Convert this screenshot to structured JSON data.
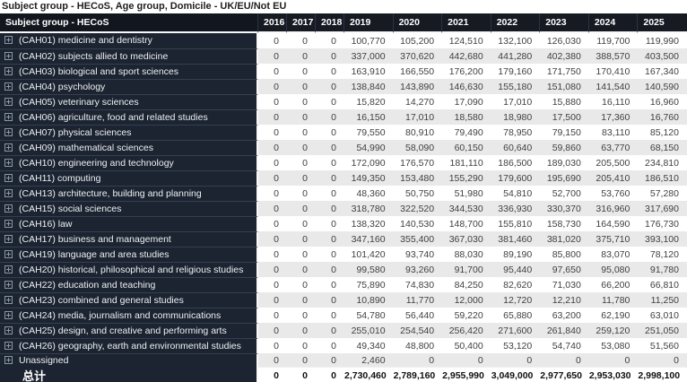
{
  "title": "Subject group - HECoS, Age group, Domicile - UK/EU/Not EU",
  "theme": {
    "header_bg": "#12161e",
    "row_label_bg": "#1c2431",
    "alt_row_bg": "#e9e9e9",
    "text_on_dark": "#ffffff"
  },
  "table": {
    "label_header": "Subject group - HECoS",
    "year_headers": [
      "2016",
      "2017",
      "2018",
      "2019",
      "2020",
      "2021",
      "2022",
      "2023",
      "2024",
      "2025"
    ],
    "rows": [
      {
        "label": "(CAH01) medicine and dentistry",
        "values": [
          "0",
          "0",
          "0",
          "100,770",
          "105,200",
          "124,510",
          "132,100",
          "126,030",
          "119,700",
          "119,990"
        ]
      },
      {
        "label": "(CAH02) subjects allied to medicine",
        "values": [
          "0",
          "0",
          "0",
          "337,000",
          "370,620",
          "442,680",
          "441,280",
          "402,380",
          "388,570",
          "403,500"
        ]
      },
      {
        "label": "(CAH03) biological and sport sciences",
        "values": [
          "0",
          "0",
          "0",
          "163,910",
          "166,550",
          "176,200",
          "179,160",
          "171,750",
          "170,410",
          "167,340"
        ]
      },
      {
        "label": "(CAH04) psychology",
        "values": [
          "0",
          "0",
          "0",
          "138,840",
          "143,890",
          "146,630",
          "155,180",
          "151,080",
          "141,540",
          "140,590"
        ]
      },
      {
        "label": "(CAH05) veterinary sciences",
        "values": [
          "0",
          "0",
          "0",
          "15,820",
          "14,270",
          "17,090",
          "17,010",
          "15,880",
          "16,110",
          "16,960"
        ]
      },
      {
        "label": "(CAH06) agriculture, food and related studies",
        "values": [
          "0",
          "0",
          "0",
          "16,150",
          "17,010",
          "18,580",
          "18,980",
          "17,500",
          "17,360",
          "16,760"
        ]
      },
      {
        "label": "(CAH07) physical sciences",
        "values": [
          "0",
          "0",
          "0",
          "79,550",
          "80,910",
          "79,490",
          "78,950",
          "79,150",
          "83,110",
          "85,120"
        ]
      },
      {
        "label": "(CAH09) mathematical sciences",
        "values": [
          "0",
          "0",
          "0",
          "54,990",
          "58,090",
          "60,150",
          "60,640",
          "59,860",
          "63,770",
          "68,150"
        ]
      },
      {
        "label": "(CAH10) engineering and technology",
        "values": [
          "0",
          "0",
          "0",
          "172,090",
          "176,570",
          "181,110",
          "186,500",
          "189,030",
          "205,500",
          "234,810"
        ]
      },
      {
        "label": "(CAH11) computing",
        "values": [
          "0",
          "0",
          "0",
          "149,350",
          "153,480",
          "155,290",
          "179,600",
          "195,690",
          "205,410",
          "186,510"
        ]
      },
      {
        "label": "(CAH13) architecture, building and planning",
        "values": [
          "0",
          "0",
          "0",
          "48,360",
          "50,750",
          "51,980",
          "54,810",
          "52,700",
          "53,760",
          "57,280"
        ]
      },
      {
        "label": "(CAH15) social sciences",
        "values": [
          "0",
          "0",
          "0",
          "318,780",
          "322,520",
          "344,530",
          "336,930",
          "330,370",
          "316,960",
          "317,690"
        ]
      },
      {
        "label": "(CAH16) law",
        "values": [
          "0",
          "0",
          "0",
          "138,320",
          "140,530",
          "148,700",
          "155,810",
          "158,730",
          "164,590",
          "176,730"
        ]
      },
      {
        "label": "(CAH17) business and management",
        "values": [
          "0",
          "0",
          "0",
          "347,160",
          "355,400",
          "367,030",
          "381,460",
          "381,020",
          "375,710",
          "393,100"
        ]
      },
      {
        "label": "(CAH19) language and area studies",
        "values": [
          "0",
          "0",
          "0",
          "101,420",
          "93,740",
          "88,030",
          "89,190",
          "85,800",
          "83,070",
          "78,120"
        ]
      },
      {
        "label": "(CAH20) historical, philosophical and religious studies",
        "values": [
          "0",
          "0",
          "0",
          "99,580",
          "93,260",
          "91,700",
          "95,440",
          "97,650",
          "95,080",
          "91,780"
        ]
      },
      {
        "label": "(CAH22) education and teaching",
        "values": [
          "0",
          "0",
          "0",
          "75,890",
          "74,830",
          "84,250",
          "82,620",
          "71,030",
          "66,200",
          "66,810"
        ]
      },
      {
        "label": "(CAH23) combined and general studies",
        "values": [
          "0",
          "0",
          "0",
          "10,890",
          "11,770",
          "12,000",
          "12,720",
          "12,210",
          "11,780",
          "11,250"
        ]
      },
      {
        "label": "(CAH24) media, journalism and communications",
        "values": [
          "0",
          "0",
          "0",
          "54,780",
          "56,440",
          "59,220",
          "65,880",
          "63,200",
          "62,190",
          "63,010"
        ]
      },
      {
        "label": "(CAH25) design, and creative and performing arts",
        "values": [
          "0",
          "0",
          "0",
          "255,010",
          "254,540",
          "256,420",
          "271,600",
          "261,840",
          "259,120",
          "251,050"
        ]
      },
      {
        "label": "(CAH26) geography, earth and environmental studies",
        "values": [
          "0",
          "0",
          "0",
          "49,340",
          "48,800",
          "50,400",
          "53,120",
          "54,740",
          "53,080",
          "51,560"
        ]
      },
      {
        "label": "Unassigned",
        "values": [
          "0",
          "0",
          "0",
          "2,460",
          "0",
          "0",
          "0",
          "0",
          "0",
          "0"
        ]
      }
    ],
    "total": {
      "label": "总计",
      "values": [
        "0",
        "0",
        "0",
        "2,730,460",
        "2,789,160",
        "2,955,990",
        "3,049,000",
        "2,977,650",
        "2,953,030",
        "2,998,100"
      ]
    }
  }
}
